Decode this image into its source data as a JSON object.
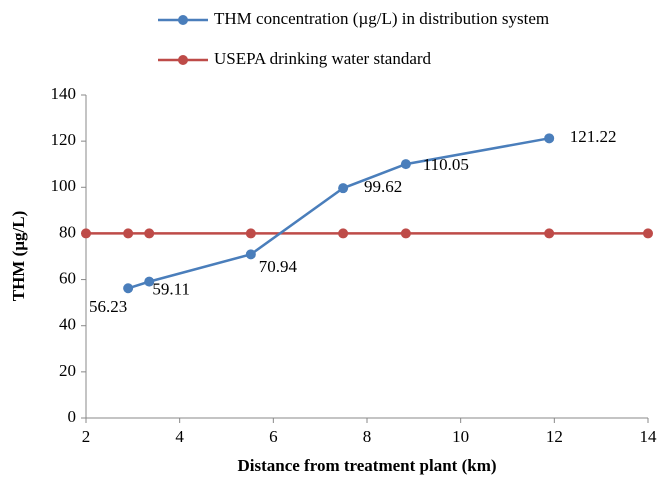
{
  "chart_data": {
    "type": "line",
    "x_label": "Distance from treatment plant (km)",
    "y_label": "THM (µg/L)",
    "xlim": [
      2,
      14
    ],
    "xticks": [
      2,
      4,
      6,
      8,
      10,
      12,
      14
    ],
    "ylim": [
      0,
      140
    ],
    "yticks": [
      0,
      20,
      40,
      60,
      80,
      100,
      120,
      140
    ],
    "series": [
      {
        "name": "THM concentration (µg/L) in distribution system",
        "color": "#4a7ebb",
        "x": [
          2.9,
          3.35,
          5.52,
          7.49,
          8.83,
          11.89
        ],
        "values": [
          56.23,
          59.11,
          70.94,
          99.62,
          110.05,
          121.22
        ],
        "show_labels": true
      },
      {
        "name": "USEPA drinking water standard",
        "color": "#be4b48",
        "x": [
          2,
          2.9,
          3.35,
          5.52,
          7.49,
          8.83,
          11.89,
          14
        ],
        "values": [
          80,
          80,
          80,
          80,
          80,
          80,
          80,
          80
        ],
        "show_labels": false
      }
    ]
  }
}
